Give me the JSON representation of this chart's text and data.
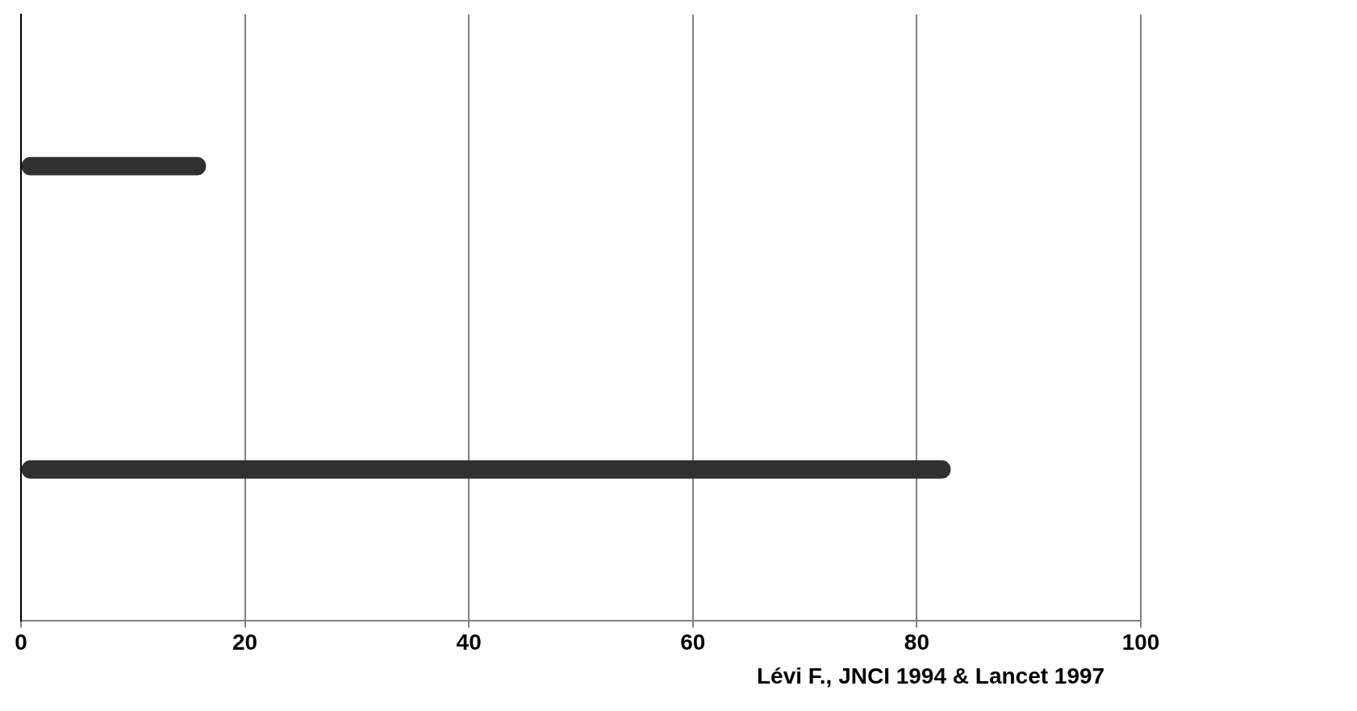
{
  "chart_data": {
    "type": "bar",
    "orientation": "horizontal",
    "categories": [
      null,
      null
    ],
    "values": [
      16.5,
      83
    ],
    "color": "#303030",
    "xlim": [
      0,
      100
    ],
    "xticks": [
      0,
      20,
      40,
      60,
      80,
      100
    ],
    "grid": "x",
    "legend": false,
    "tick_labels": "x",
    "annotations": [
      "Lévi F., JNCI 1994 & Lancet 1997"
    ]
  }
}
